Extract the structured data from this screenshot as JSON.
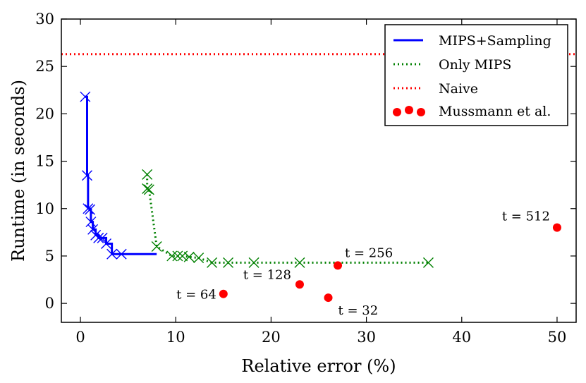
{
  "chart_data": {
    "type": "line",
    "xlabel": "Relative error (%)",
    "ylabel": "Runtime (in seconds)",
    "xlim": [
      -2,
      52
    ],
    "ylim": [
      -2,
      30
    ],
    "xticks": [
      0,
      10,
      20,
      30,
      40,
      50
    ],
    "yticks": [
      0,
      5,
      10,
      15,
      20,
      25,
      30
    ],
    "legend_position": "top-right",
    "series": [
      {
        "name": "MIPS+Sampling",
        "style": "solid-line-with-x-markers",
        "color": "#0000ff",
        "x": [
          0.5,
          0.7,
          0.8,
          1.0,
          1.1,
          1.3,
          1.6,
          1.9,
          2.3,
          2.7,
          3.3,
          4.3,
          8.0
        ],
        "y": [
          21.8,
          13.5,
          10.0,
          9.9,
          8.6,
          7.8,
          7.2,
          6.9,
          6.9,
          6.3,
          5.2,
          5.2,
          5.2
        ],
        "markers_end_index": 11
      },
      {
        "name": "Only MIPS",
        "style": "dotted-line-with-x-markers",
        "color": "#008000",
        "x": [
          7.0,
          7.0,
          7.2,
          8.0,
          9.6,
          10.2,
          10.7,
          11.4,
          12.4,
          13.8,
          15.5,
          18.2,
          23.0,
          36.5
        ],
        "y": [
          13.6,
          12.1,
          12.0,
          6.0,
          5.0,
          5.0,
          5.0,
          4.9,
          4.8,
          4.3,
          4.3,
          4.3,
          4.3,
          4.3
        ]
      },
      {
        "name": "Naive",
        "style": "dotted-horizontal-line",
        "color": "#ff0000",
        "y": 26.3
      },
      {
        "name": "Mussmann et al.",
        "style": "points",
        "color": "#ff0000",
        "points": [
          {
            "x": 15,
            "y": 1.0,
            "label": "t = 64"
          },
          {
            "x": 26,
            "y": 0.6,
            "label": "t = 32"
          },
          {
            "x": 23,
            "y": 2.0,
            "label": "t = 128"
          },
          {
            "x": 27,
            "y": 4.0,
            "label": "t = 256"
          },
          {
            "x": 50,
            "y": 8.0,
            "label": "t = 512"
          }
        ]
      }
    ]
  }
}
